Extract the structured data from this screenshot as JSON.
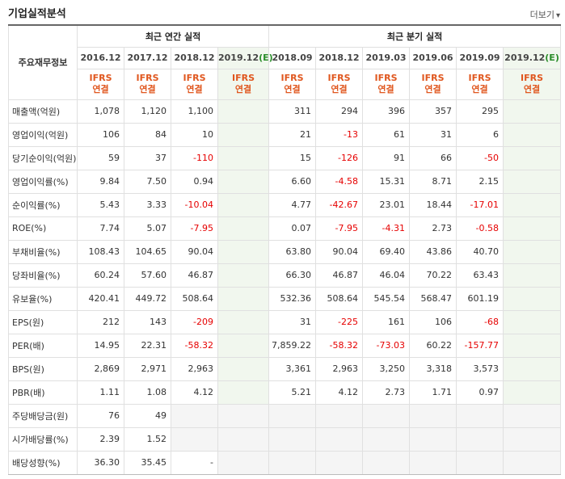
{
  "header": {
    "title": "기업실적분석",
    "more_label": "더보기",
    "more_arrow": "▾"
  },
  "table": {
    "corner_label": "주요재무정보",
    "groups": {
      "annual": "최근 연간 실적",
      "quarter": "최근 분기 실적"
    },
    "periods": [
      "2016.12",
      "2017.12",
      "2018.12",
      "2019.12(E)",
      "2018.09",
      "2018.12",
      "2019.03",
      "2019.06",
      "2019.09",
      "2019.12(E)"
    ],
    "standard": [
      "IFRS",
      "연결"
    ],
    "rows": [
      {
        "label": "매출액(억원)",
        "values": [
          "1,078",
          "1,120",
          "1,100",
          "",
          "311",
          "294",
          "396",
          "357",
          "295",
          ""
        ]
      },
      {
        "label": "영업이익(억원)",
        "values": [
          "106",
          "84",
          "10",
          "",
          "21",
          "-13",
          "61",
          "31",
          "6",
          ""
        ]
      },
      {
        "label": "당기순이익(억원)",
        "values": [
          "59",
          "37",
          "-110",
          "",
          "15",
          "-126",
          "91",
          "66",
          "-50",
          ""
        ]
      },
      {
        "label": "영업이익률(%)",
        "values": [
          "9.84",
          "7.50",
          "0.94",
          "",
          "6.60",
          "-4.58",
          "15.31",
          "8.71",
          "2.15",
          ""
        ]
      },
      {
        "label": "순이익률(%)",
        "values": [
          "5.43",
          "3.33",
          "-10.04",
          "",
          "4.77",
          "-42.67",
          "23.01",
          "18.44",
          "-17.01",
          ""
        ]
      },
      {
        "label": "ROE(%)",
        "values": [
          "7.74",
          "5.07",
          "-7.95",
          "",
          "0.07",
          "-7.95",
          "-4.31",
          "2.73",
          "-0.58",
          ""
        ]
      },
      {
        "label": "부채비율(%)",
        "values": [
          "108.43",
          "104.65",
          "90.04",
          "",
          "63.80",
          "90.04",
          "69.40",
          "43.86",
          "40.70",
          ""
        ]
      },
      {
        "label": "당좌비율(%)",
        "values": [
          "60.24",
          "57.60",
          "46.87",
          "",
          "66.30",
          "46.87",
          "46.04",
          "70.22",
          "63.43",
          ""
        ]
      },
      {
        "label": "유보율(%)",
        "values": [
          "420.41",
          "449.72",
          "508.64",
          "",
          "532.36",
          "508.64",
          "545.54",
          "568.47",
          "601.19",
          ""
        ]
      },
      {
        "label": "EPS(원)",
        "values": [
          "212",
          "143",
          "-209",
          "",
          "31",
          "-225",
          "161",
          "106",
          "-68",
          ""
        ]
      },
      {
        "label": "PER(배)",
        "values": [
          "14.95",
          "22.31",
          "-58.32",
          "",
          "7,859.22",
          "-58.32",
          "-73.03",
          "60.22",
          "-157.77",
          ""
        ]
      },
      {
        "label": "BPS(원)",
        "values": [
          "2,869",
          "2,971",
          "2,963",
          "",
          "3,361",
          "2,963",
          "3,250",
          "3,318",
          "3,573",
          ""
        ]
      },
      {
        "label": "PBR(배)",
        "values": [
          "1.11",
          "1.08",
          "4.12",
          "",
          "5.21",
          "4.12",
          "2.73",
          "1.71",
          "0.97",
          ""
        ]
      },
      {
        "label": "주당배당금(원)",
        "values": [
          "76",
          "49",
          "",
          "",
          "",
          "",
          "",
          "",
          "",
          ""
        ]
      },
      {
        "label": "시가배당률(%)",
        "values": [
          "2.39",
          "1.52",
          "",
          "",
          "",
          "",
          "",
          "",
          "",
          ""
        ]
      },
      {
        "label": "배당성향(%)",
        "values": [
          "36.30",
          "35.45",
          "-",
          "",
          "",
          "",
          "",
          "",
          "",
          ""
        ]
      }
    ]
  }
}
